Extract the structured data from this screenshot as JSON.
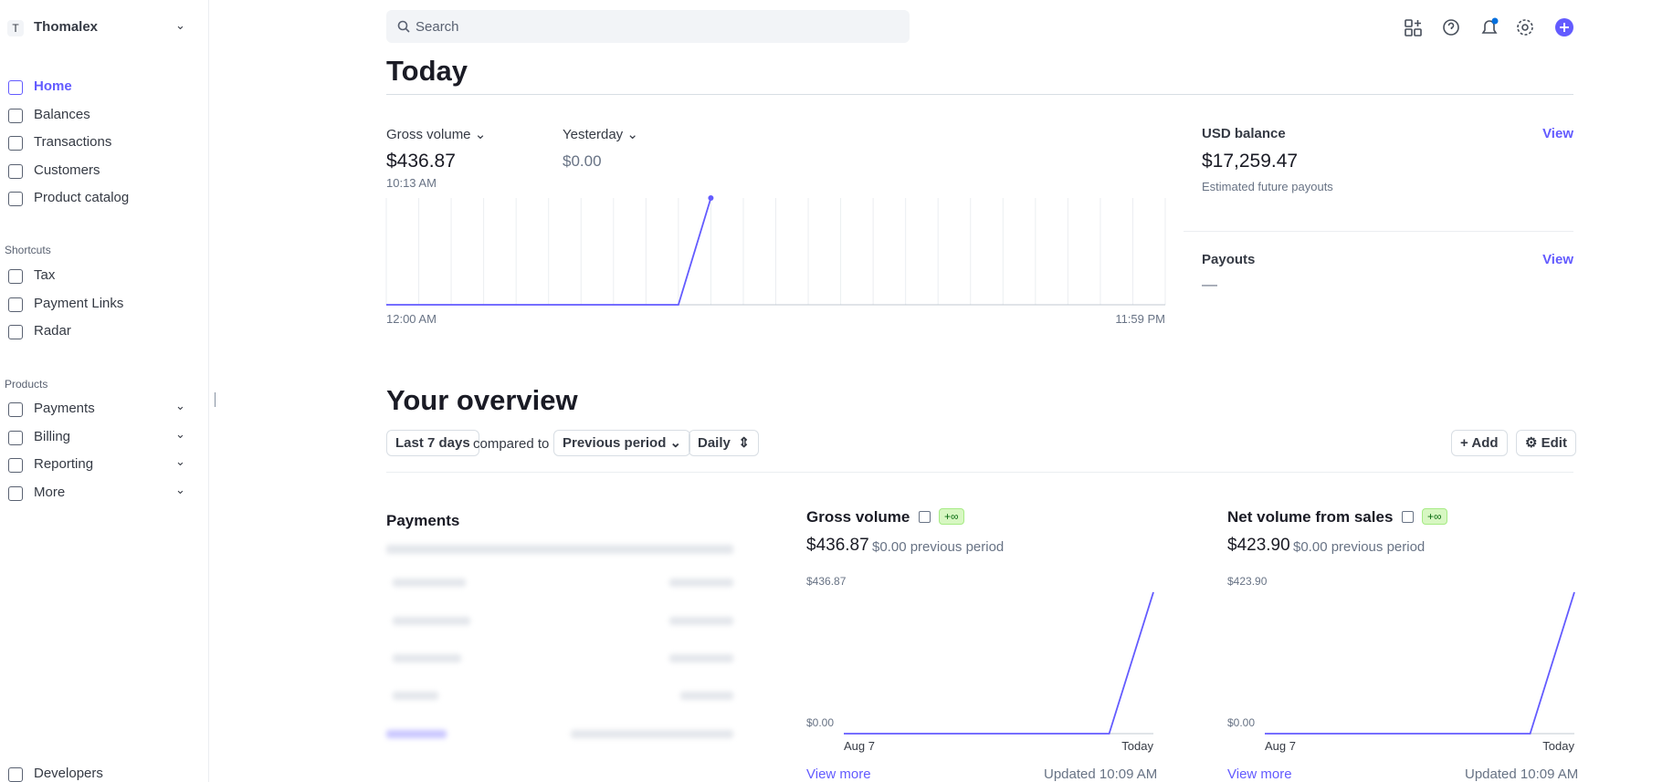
{
  "sidebar": {
    "account": {
      "initial": "T",
      "name": "Thomalex"
    },
    "nav": [
      "Home",
      "Balances",
      "Transactions",
      "Customers",
      "Product catalog"
    ],
    "shortcuts": {
      "heading": "Shortcuts",
      "items": [
        "Tax",
        "Payment Links",
        "Radar"
      ]
    },
    "products": {
      "heading": "Products",
      "items": [
        "Payments",
        "Billing",
        "Reporting",
        "More"
      ]
    },
    "footer": "Developers"
  },
  "search": {
    "placeholder": "Search"
  },
  "today": {
    "title": "Today",
    "gross": {
      "label": "Gross volume",
      "value": "$436.87",
      "time": "10:13 AM"
    },
    "yesterday": {
      "label": "Yesterday",
      "value": "$0.00"
    },
    "chart": {
      "type": "line",
      "values": [
        0,
        0,
        0,
        0,
        0,
        0,
        0,
        0,
        0,
        0,
        436.87
      ],
      "xlim": [
        0,
        24
      ],
      "ylim": [
        0,
        436.87
      ],
      "color": "#635bff",
      "xticks": [
        {
          "value": 0,
          "label": "12:00 AM"
        },
        {
          "value": 24,
          "label": "11:59 PM"
        }
      ]
    },
    "balance": {
      "label": "USD balance",
      "link": "View",
      "value": "$17,259.47",
      "note": "Estimated future payouts"
    },
    "payouts": {
      "label": "Payouts",
      "link": "View",
      "value": "—"
    }
  },
  "overview": {
    "title": "Your overview",
    "range": "Last 7 days",
    "compared": "compared to",
    "period": "Previous period",
    "interval": "Daily",
    "add": "Add",
    "edit": "Edit",
    "payments": {
      "title": "Payments"
    },
    "cards": [
      {
        "title": "Gross volume",
        "badge": "+∞",
        "value": "$436.87",
        "previous": "$0.00 previous period",
        "chart": {
          "type": "line",
          "color": "#635bff",
          "values": [
            0,
            0,
            0,
            0,
            0,
            0,
            0,
            436.87
          ],
          "ylim": [
            0,
            436.87
          ],
          "yticks": [
            {
              "value": 0,
              "label": "$0.00"
            },
            {
              "value": 436.87,
              "label": "$436.87"
            }
          ],
          "xlabels": [
            "Aug 7",
            "Today"
          ]
        },
        "link": "View more",
        "updated": "Updated 10:09 AM"
      },
      {
        "title": "Net volume from sales",
        "badge": "+∞",
        "value": "$423.90",
        "previous": "$0.00 previous period",
        "chart": {
          "type": "line",
          "color": "#635bff",
          "values": [
            0,
            0,
            0,
            0,
            0,
            0,
            0,
            423.9
          ],
          "ylim": [
            0,
            423.9
          ],
          "yticks": [
            {
              "value": 0,
              "label": "$0.00"
            },
            {
              "value": 423.9,
              "label": "$423.90"
            }
          ],
          "xlabels": [
            "Aug 7",
            "Today"
          ]
        },
        "link": "View more",
        "updated": "Updated 10:09 AM"
      }
    ]
  }
}
